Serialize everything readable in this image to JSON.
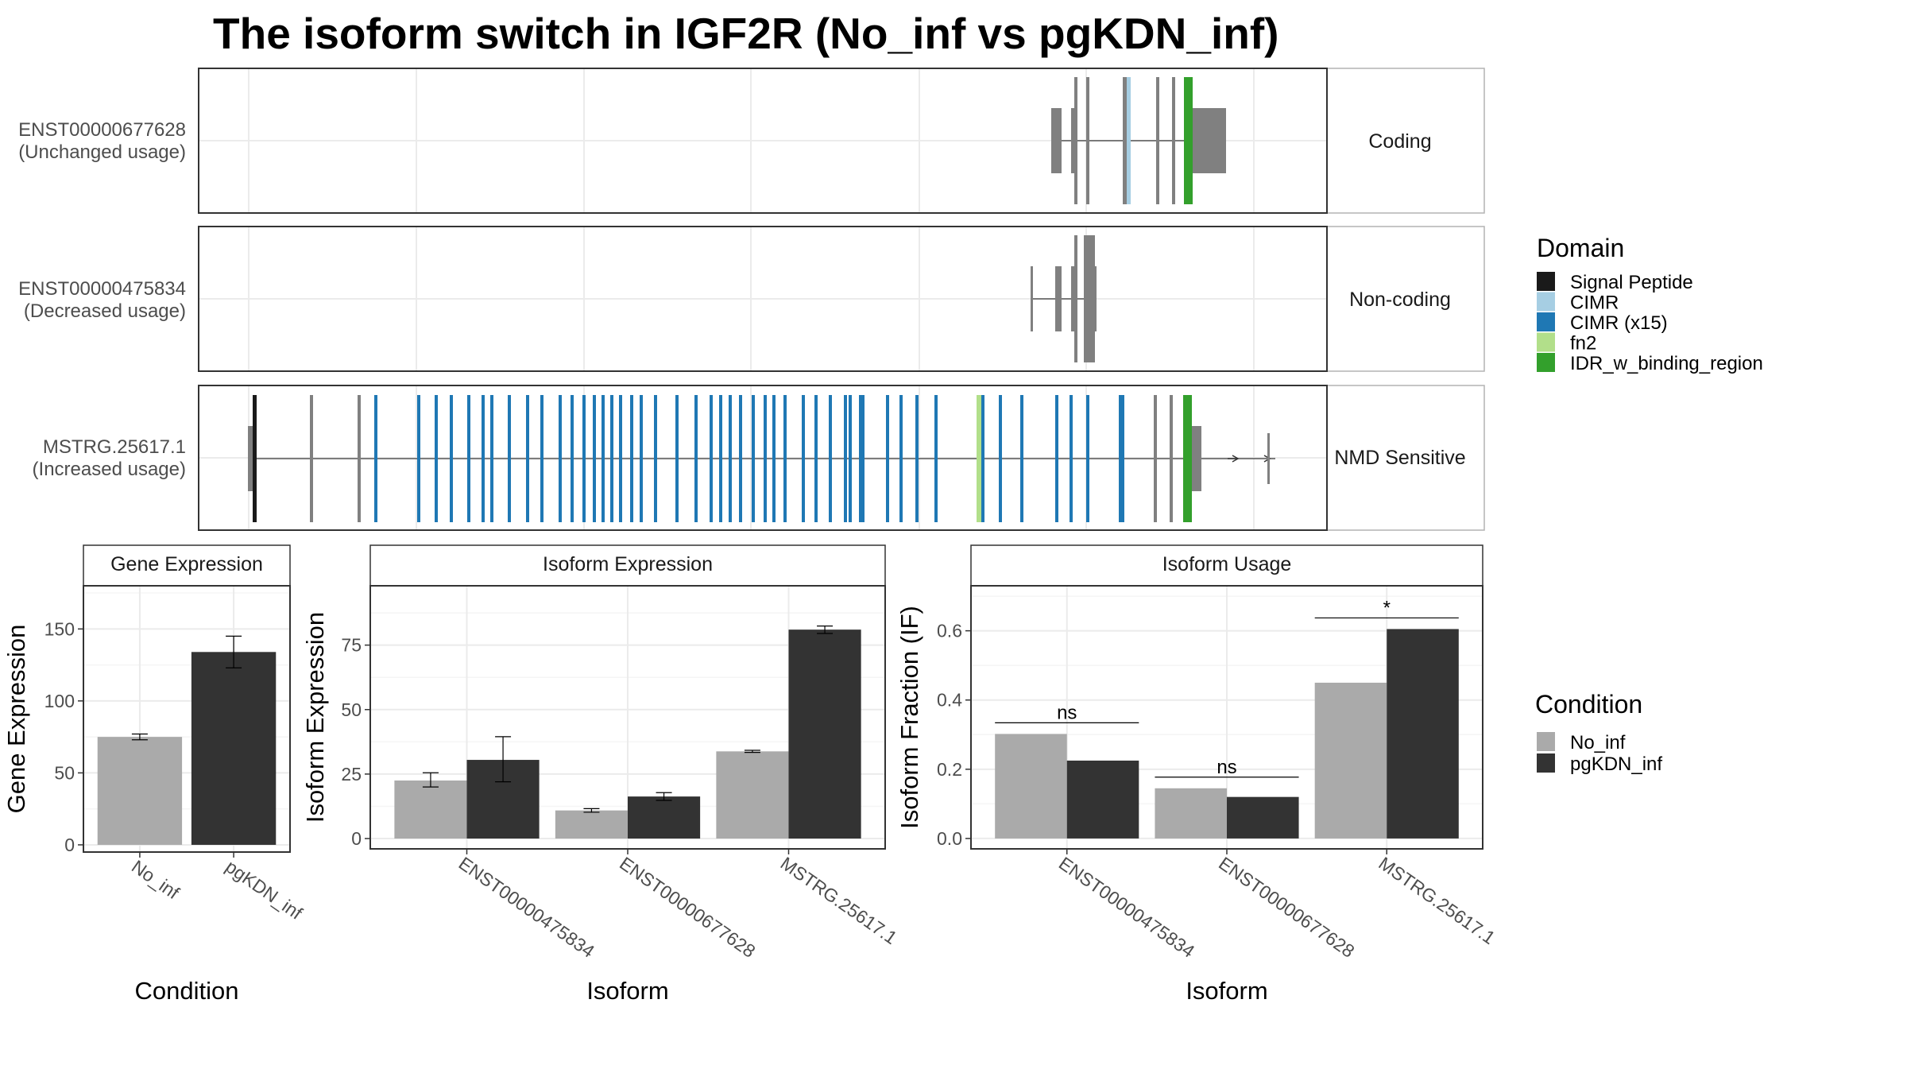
{
  "chart_data": [
    {
      "type": "isoform_structure",
      "title": "The isoform switch in IGF2R (No_inf vs pgKDN_inf)",
      "transcripts": [
        {
          "id": "ENST00000677628",
          "usage": "(Unchanged usage)",
          "category": "Coding"
        },
        {
          "id": "ENST00000475834",
          "usage": "(Decreased usage)",
          "category": "Non-coding"
        },
        {
          "id": "MSTRG.25617.1",
          "usage": "(Increased usage)",
          "category": "NMD Sensitive"
        }
      ],
      "domain_legend": {
        "title": "Domain",
        "entries": [
          {
            "name": "Signal Peptide",
            "color": "#1a1a1a"
          },
          {
            "name": "CIMR",
            "color": "#a6cee3"
          },
          {
            "name": "CIMR (x15)",
            "color": "#1f78b4"
          },
          {
            "name": "fn2",
            "color": "#b2df8a"
          },
          {
            "name": "IDR_w_binding_region",
            "color": "#33a02c"
          }
        ]
      }
    },
    {
      "type": "bar",
      "strip": "Gene Expression",
      "xlabel": "Condition",
      "ylabel": "Gene Expression",
      "categories": [
        "No_inf",
        "pgKDN_inf"
      ],
      "values": [
        75,
        134
      ],
      "errors": [
        [
          73,
          77
        ],
        [
          123,
          145
        ]
      ],
      "ylim": [
        -5,
        180
      ],
      "yticks": [
        "0",
        "50",
        "100",
        "150"
      ]
    },
    {
      "type": "bar",
      "strip": "Isoform Expression",
      "xlabel": "Isoform",
      "ylabel": "Isoform Expression",
      "categories": [
        "ENST00000475834",
        "ENST00000677628",
        "MSTRG.25617.1"
      ],
      "series": [
        {
          "name": "No_inf",
          "values": [
            22.5,
            10.9,
            33.8
          ],
          "errors": [
            [
              20,
              25.5
            ],
            [
              10.2,
              11.6
            ],
            [
              33.4,
              34.2
            ]
          ]
        },
        {
          "name": "pgKDN_inf",
          "values": [
            30.5,
            16.3,
            81
          ],
          "errors": [
            [
              22,
              39.5
            ],
            [
              14.8,
              17.8
            ],
            [
              79.5,
              82.4
            ]
          ]
        }
      ],
      "ylim": [
        -4,
        98
      ],
      "yticks": [
        "0",
        "25",
        "50",
        "75"
      ]
    },
    {
      "type": "bar",
      "strip": "Isoform Usage",
      "xlabel": "Isoform",
      "ylabel": "Isoform Fraction (IF)",
      "categories": [
        "ENST00000475834",
        "ENST00000677628",
        "MSTRG.25617.1"
      ],
      "series": [
        {
          "name": "No_inf",
          "values": [
            0.302,
            0.145,
            0.45
          ]
        },
        {
          "name": "pgKDN_inf",
          "values": [
            0.225,
            0.12,
            0.605
          ]
        }
      ],
      "significance": [
        "ns",
        "ns",
        "*"
      ],
      "ylim": [
        -0.03,
        0.73
      ],
      "yticks": [
        "0.0",
        "0.2",
        "0.4",
        "0.6"
      ]
    }
  ],
  "condition_legend": {
    "title": "Condition",
    "entries": [
      {
        "name": "No_inf",
        "color": "#aaaaaa"
      },
      {
        "name": "pgKDN_inf",
        "color": "#333333"
      }
    ]
  }
}
